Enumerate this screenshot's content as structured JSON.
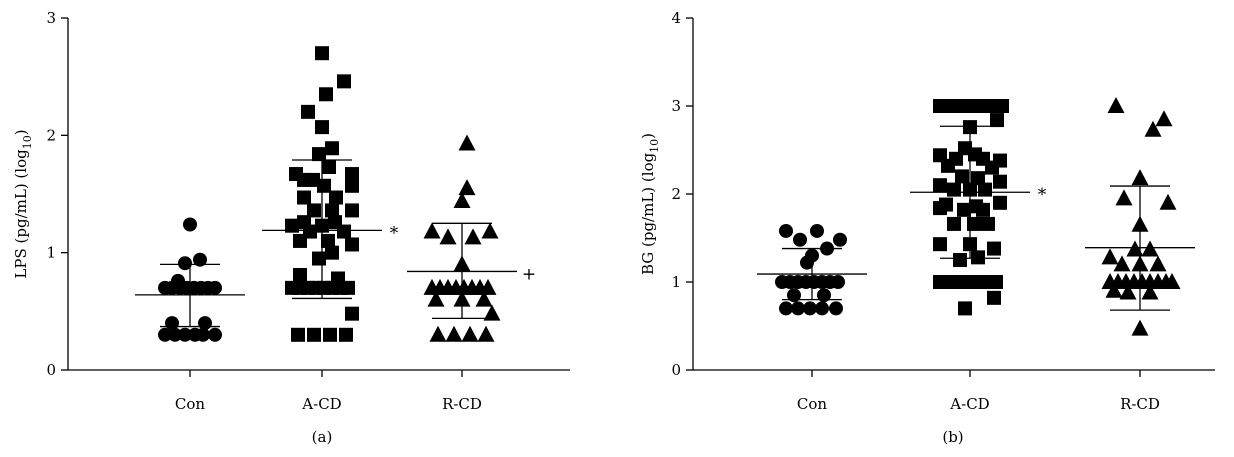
{
  "chart_data": [
    {
      "type": "scatter",
      "panel_label": "(a)",
      "ylabel_main": "LPS (pg/mL) (log",
      "ylabel_sub": "10",
      "ylabel_close": ")",
      "ylim": [
        0,
        3
      ],
      "yticks": [
        "0",
        "1",
        "2",
        "3"
      ],
      "categories": [
        "Con",
        "A-CD",
        "R-CD"
      ],
      "grid": false,
      "groups": [
        {
          "name": "Con",
          "marker": "circle",
          "mean": 0.64,
          "sd_low": 0.37,
          "sd_high": 0.9,
          "annotation": "",
          "points": [
            [
              -0.25,
              0.7
            ],
            [
              -0.18,
              0.7
            ],
            [
              -0.1,
              0.7
            ],
            [
              -0.03,
              0.7
            ],
            [
              0.04,
              0.7
            ],
            [
              0.11,
              0.7
            ],
            [
              0.18,
              0.7
            ],
            [
              0.25,
              0.7
            ],
            [
              0.0,
              1.24
            ],
            [
              -0.05,
              0.91
            ],
            [
              0.1,
              0.94
            ],
            [
              -0.12,
              0.76
            ],
            [
              -0.25,
              0.3
            ],
            [
              -0.15,
              0.3
            ],
            [
              -0.05,
              0.3
            ],
            [
              0.05,
              0.3
            ],
            [
              0.13,
              0.3
            ],
            [
              0.25,
              0.3
            ],
            [
              -0.18,
              0.4
            ],
            [
              0.15,
              0.4
            ]
          ]
        },
        {
          "name": "A-CD",
          "marker": "square",
          "mean": 1.19,
          "sd_low": 0.61,
          "sd_high": 1.79,
          "annotation": "*",
          "points": [
            [
              0.0,
              2.7
            ],
            [
              0.22,
              2.46
            ],
            [
              -0.14,
              2.2
            ],
            [
              0.04,
              2.35
            ],
            [
              0.0,
              2.07
            ],
            [
              0.1,
              1.89
            ],
            [
              -0.03,
              1.84
            ],
            [
              0.07,
              1.73
            ],
            [
              -0.26,
              1.67
            ],
            [
              -0.18,
              1.62
            ],
            [
              -0.09,
              1.62
            ],
            [
              0.3,
              1.67
            ],
            [
              0.3,
              1.57
            ],
            [
              0.02,
              1.57
            ],
            [
              -0.18,
              1.47
            ],
            [
              0.14,
              1.47
            ],
            [
              0.3,
              1.36
            ],
            [
              -0.08,
              1.36
            ],
            [
              0.1,
              1.36
            ],
            [
              -0.18,
              1.26
            ],
            [
              -0.3,
              1.23
            ],
            [
              0.0,
              1.23
            ],
            [
              0.13,
              1.26
            ],
            [
              -0.12,
              1.18
            ],
            [
              0.22,
              1.18
            ],
            [
              -0.22,
              1.1
            ],
            [
              0.06,
              1.1
            ],
            [
              0.3,
              1.07
            ],
            [
              -0.03,
              0.95
            ],
            [
              0.1,
              1.0
            ],
            [
              -0.22,
              0.81
            ],
            [
              0.16,
              0.78
            ],
            [
              -0.3,
              0.7
            ],
            [
              -0.22,
              0.7
            ],
            [
              -0.14,
              0.7
            ],
            [
              -0.06,
              0.7
            ],
            [
              0.02,
              0.7
            ],
            [
              0.1,
              0.7
            ],
            [
              0.18,
              0.7
            ],
            [
              0.26,
              0.7
            ],
            [
              0.3,
              0.48
            ],
            [
              -0.24,
              0.3
            ],
            [
              -0.08,
              0.3
            ],
            [
              0.08,
              0.3
            ],
            [
              0.24,
              0.3
            ]
          ]
        },
        {
          "name": "R-CD",
          "marker": "triangle",
          "mean": 0.84,
          "sd_low": 0.44,
          "sd_high": 1.25,
          "annotation": "+",
          "points": [
            [
              0.05,
              1.93
            ],
            [
              0.05,
              1.55
            ],
            [
              0.0,
              1.44
            ],
            [
              -0.3,
              1.18
            ],
            [
              0.28,
              1.18
            ],
            [
              -0.14,
              1.13
            ],
            [
              0.11,
              1.13
            ],
            [
              0.0,
              0.9
            ],
            [
              -0.3,
              0.7
            ],
            [
              -0.22,
              0.7
            ],
            [
              -0.14,
              0.7
            ],
            [
              -0.06,
              0.7
            ],
            [
              0.02,
              0.7
            ],
            [
              0.1,
              0.7
            ],
            [
              0.18,
              0.7
            ],
            [
              0.26,
              0.7
            ],
            [
              -0.26,
              0.6
            ],
            [
              0.0,
              0.6
            ],
            [
              0.22,
              0.6
            ],
            [
              0.3,
              0.48
            ],
            [
              -0.24,
              0.3
            ],
            [
              -0.08,
              0.3
            ],
            [
              0.08,
              0.3
            ],
            [
              0.24,
              0.3
            ]
          ]
        }
      ]
    },
    {
      "type": "scatter",
      "panel_label": "(b)",
      "ylabel_main": "BG (pg/mL) (log",
      "ylabel_sub": "10",
      "ylabel_close": ")",
      "ylim": [
        0,
        4
      ],
      "yticks": [
        "0",
        "1",
        "2",
        "3",
        "4"
      ],
      "categories": [
        "Con",
        "A-CD",
        "R-CD"
      ],
      "grid": false,
      "groups": [
        {
          "name": "Con",
          "marker": "circle",
          "mean": 1.09,
          "sd_low": 0.8,
          "sd_high": 1.38,
          "annotation": "",
          "points": [
            [
              -0.26,
              1.58
            ],
            [
              0.05,
              1.58
            ],
            [
              -0.12,
              1.48
            ],
            [
              0.28,
              1.48
            ],
            [
              0.15,
              1.38
            ],
            [
              -0.05,
              1.22
            ],
            [
              0.0,
              1.3
            ],
            [
              -0.3,
              1.0
            ],
            [
              -0.22,
              1.0
            ],
            [
              -0.14,
              1.0
            ],
            [
              -0.06,
              1.0
            ],
            [
              0.02,
              1.0
            ],
            [
              0.1,
              1.0
            ],
            [
              0.18,
              1.0
            ],
            [
              0.26,
              1.0
            ],
            [
              -0.18,
              0.85
            ],
            [
              0.12,
              0.85
            ],
            [
              -0.26,
              0.7
            ],
            [
              -0.14,
              0.7
            ],
            [
              -0.02,
              0.7
            ],
            [
              0.1,
              0.7
            ],
            [
              0.24,
              0.7
            ]
          ]
        },
        {
          "name": "A-CD",
          "marker": "square",
          "mean": 2.02,
          "sd_low": 1.27,
          "sd_high": 2.77,
          "annotation": "*",
          "points": [
            [
              -0.3,
              3.0
            ],
            [
              -0.22,
              3.0
            ],
            [
              -0.14,
              3.0
            ],
            [
              -0.06,
              3.0
            ],
            [
              0.02,
              3.0
            ],
            [
              0.1,
              3.0
            ],
            [
              0.18,
              3.0
            ],
            [
              0.26,
              3.0
            ],
            [
              0.32,
              3.0
            ],
            [
              0.27,
              2.84
            ],
            [
              0.0,
              2.76
            ],
            [
              -0.05,
              2.52
            ],
            [
              -0.3,
              2.44
            ],
            [
              0.3,
              2.38
            ],
            [
              -0.14,
              2.4
            ],
            [
              0.13,
              2.4
            ],
            [
              0.05,
              2.45
            ],
            [
              -0.22,
              2.32
            ],
            [
              0.22,
              2.3
            ],
            [
              -0.08,
              2.2
            ],
            [
              0.08,
              2.18
            ],
            [
              0.3,
              2.14
            ],
            [
              -0.3,
              2.1
            ],
            [
              0.0,
              2.05
            ],
            [
              0.15,
              2.05
            ],
            [
              -0.16,
              2.05
            ],
            [
              -0.24,
              1.88
            ],
            [
              0.3,
              1.9
            ],
            [
              0.06,
              1.86
            ],
            [
              -0.06,
              1.82
            ],
            [
              -0.3,
              1.84
            ],
            [
              0.13,
              1.82
            ],
            [
              -0.16,
              1.66
            ],
            [
              0.04,
              1.66
            ],
            [
              0.18,
              1.66
            ],
            [
              -0.3,
              1.43
            ],
            [
              0.0,
              1.43
            ],
            [
              0.24,
              1.38
            ],
            [
              -0.3,
              1.0
            ],
            [
              -0.22,
              1.0
            ],
            [
              -0.14,
              1.0
            ],
            [
              -0.06,
              1.0
            ],
            [
              0.02,
              1.0
            ],
            [
              0.1,
              1.0
            ],
            [
              0.18,
              1.0
            ],
            [
              0.26,
              1.0
            ],
            [
              -0.1,
              1.25
            ],
            [
              0.08,
              1.28
            ],
            [
              0.24,
              0.82
            ],
            [
              -0.05,
              0.7
            ]
          ]
        },
        {
          "name": "R-CD",
          "marker": "triangle",
          "mean": 1.39,
          "sd_low": 0.68,
          "sd_high": 2.09,
          "annotation": "",
          "points": [
            [
              -0.24,
              3.0
            ],
            [
              0.24,
              2.85
            ],
            [
              0.13,
              2.73
            ],
            [
              0.0,
              2.18
            ],
            [
              -0.16,
              1.95
            ],
            [
              0.28,
              1.9
            ],
            [
              0.0,
              1.65
            ],
            [
              -0.05,
              1.37
            ],
            [
              0.1,
              1.37
            ],
            [
              -0.3,
              1.28
            ],
            [
              -0.18,
              1.2
            ],
            [
              0.18,
              1.2
            ],
            [
              0.0,
              1.2
            ],
            [
              -0.3,
              1.0
            ],
            [
              -0.22,
              1.0
            ],
            [
              -0.14,
              1.0
            ],
            [
              -0.06,
              1.0
            ],
            [
              0.02,
              1.0
            ],
            [
              0.1,
              1.0
            ],
            [
              0.18,
              1.0
            ],
            [
              0.26,
              1.0
            ],
            [
              0.32,
              1.0
            ],
            [
              -0.12,
              0.88
            ],
            [
              0.1,
              0.88
            ],
            [
              -0.26,
              0.9
            ],
            [
              0.0,
              0.47
            ]
          ]
        }
      ]
    }
  ]
}
